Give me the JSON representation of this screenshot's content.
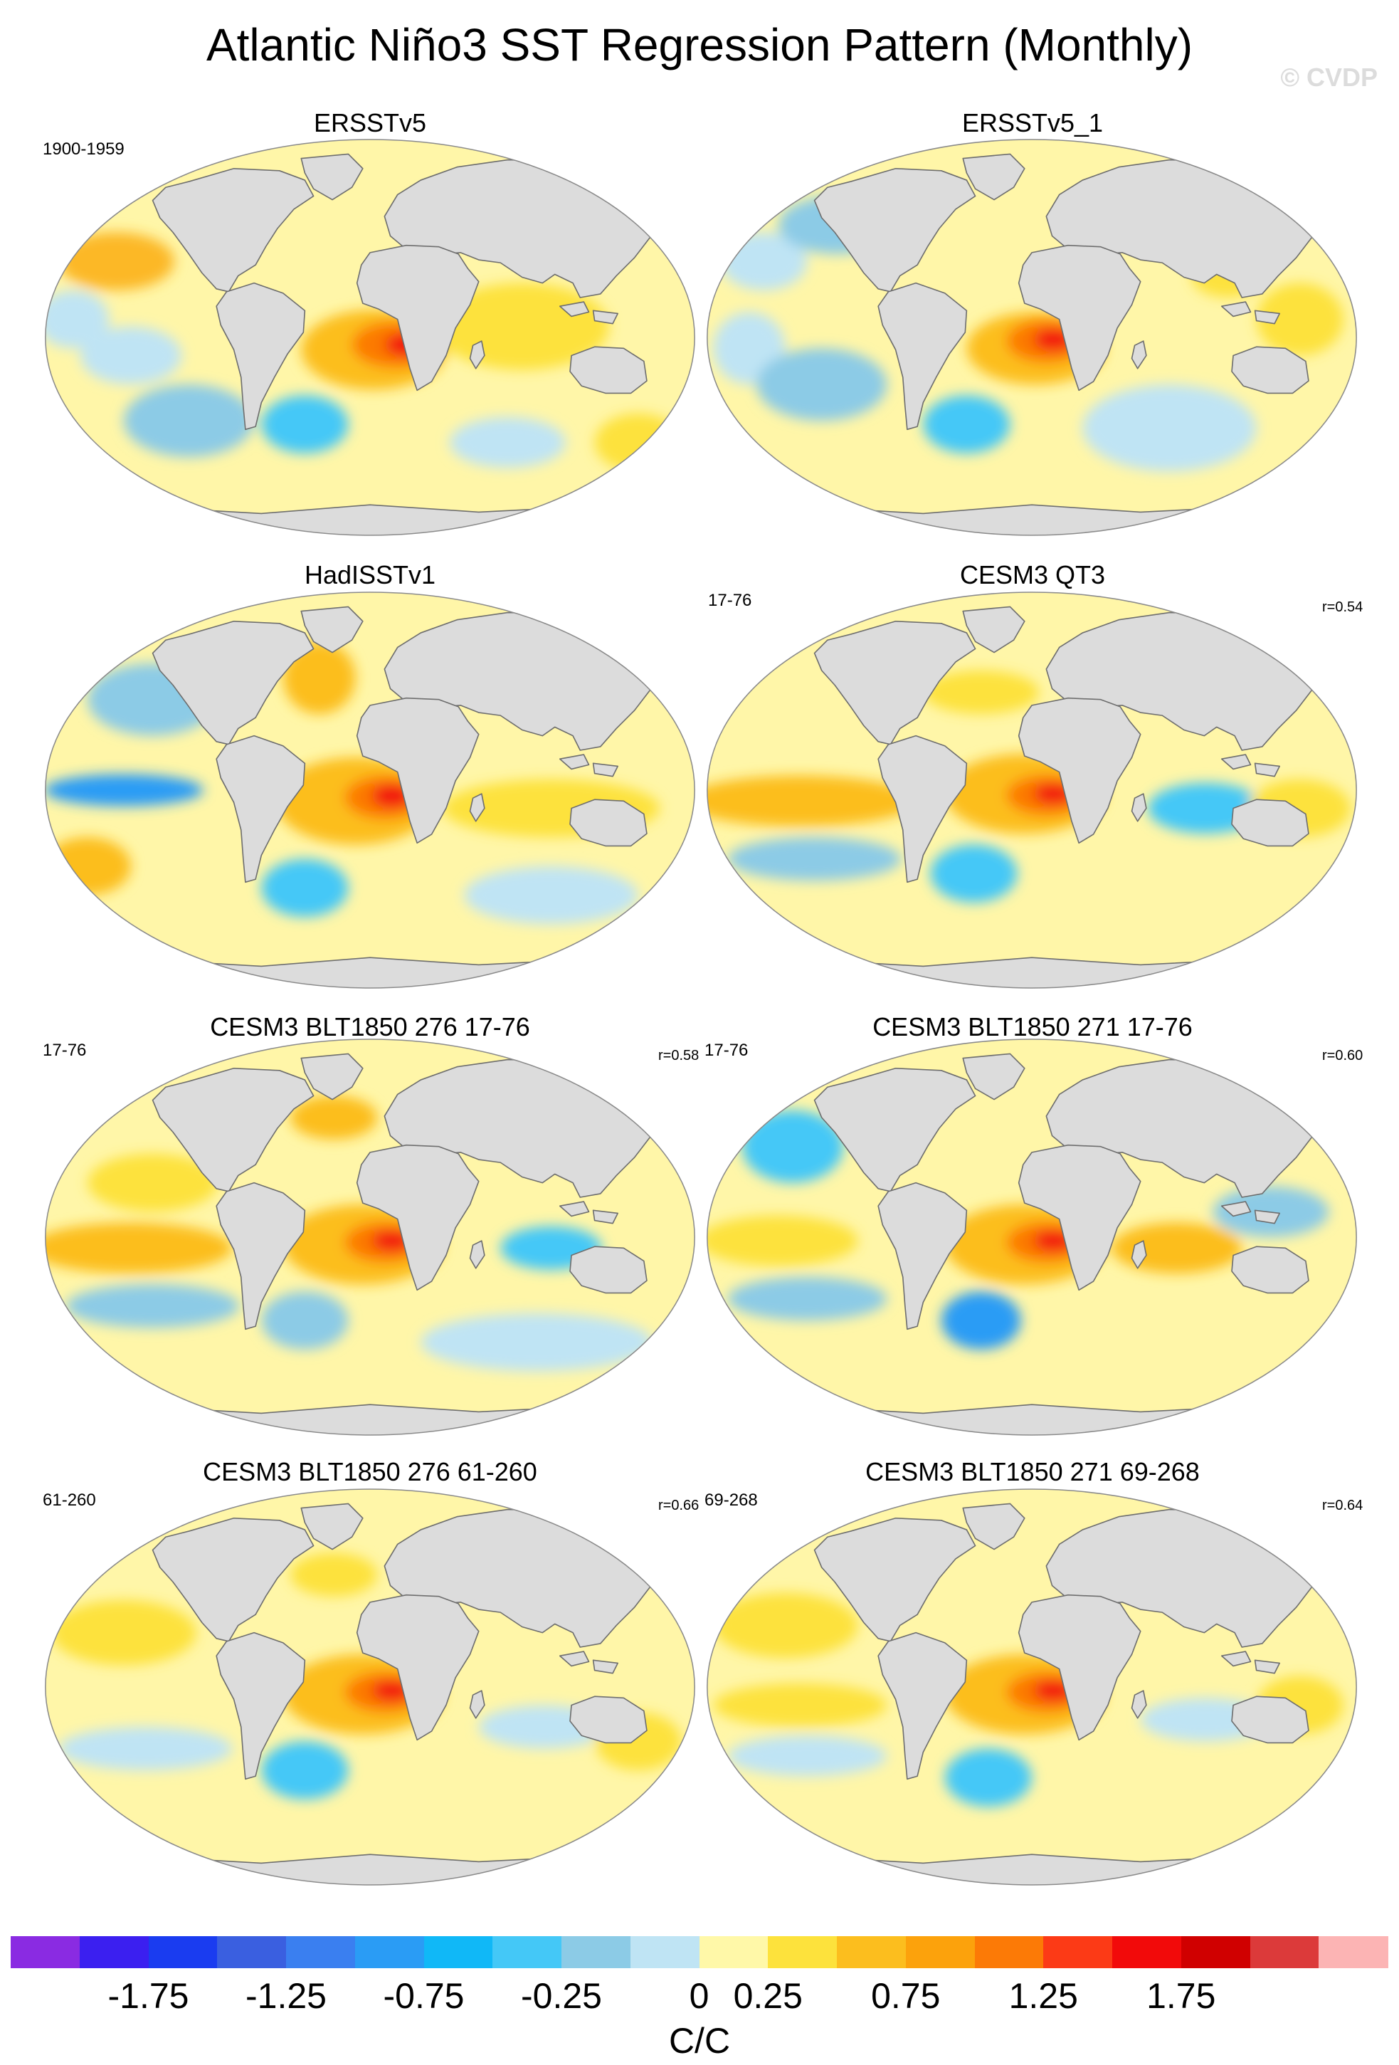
{
  "title": "Atlantic Niño3 SST Regression Pattern (Monthly)",
  "credit": "© CVDP",
  "panels": [
    {
      "title": "ERSSTv5",
      "years": "1900-1959",
      "r": ""
    },
    {
      "title": "ERSSTv5_1",
      "years": "",
      "r": ""
    },
    {
      "title": "HadISSTv1",
      "years": "",
      "r": ""
    },
    {
      "title": "CESM3 QT3",
      "years": "17-76",
      "r": "r=0.54"
    },
    {
      "title": "CESM3 BLT1850 276 17-76",
      "years": "17-76",
      "r": "r=0.58"
    },
    {
      "title": "CESM3 BLT1850 271 17-76",
      "years": "17-76",
      "r": "r=0.60"
    },
    {
      "title": "CESM3 BLT1850 276 61-260",
      "years": "61-260",
      "r": "r=0.66"
    },
    {
      "title": "CESM3 BLT1850 271 69-268",
      "years": "69-268",
      "r": "r=0.64"
    }
  ],
  "colorbar": {
    "units": "C/C",
    "labels": [
      "-1.75",
      "-1.25",
      "-0.75",
      "-0.25",
      "0",
      "0.25",
      "0.75",
      "1.25",
      "1.75"
    ],
    "colors": [
      "#8a2be2",
      "#3b1ff0",
      "#1a3cf0",
      "#3a5fe0",
      "#3a7ff0",
      "#2a9cf5",
      "#10b8f7",
      "#44c8f7",
      "#8ccbe6",
      "#bfe4f4",
      "#fff8a8",
      "#fde23c",
      "#fcbe1e",
      "#fca20c",
      "#fc7a06",
      "#fc3a16",
      "#f20a0a",
      "#d00000",
      "#dc3a3a",
      "#fcb4b4"
    ]
  }
}
